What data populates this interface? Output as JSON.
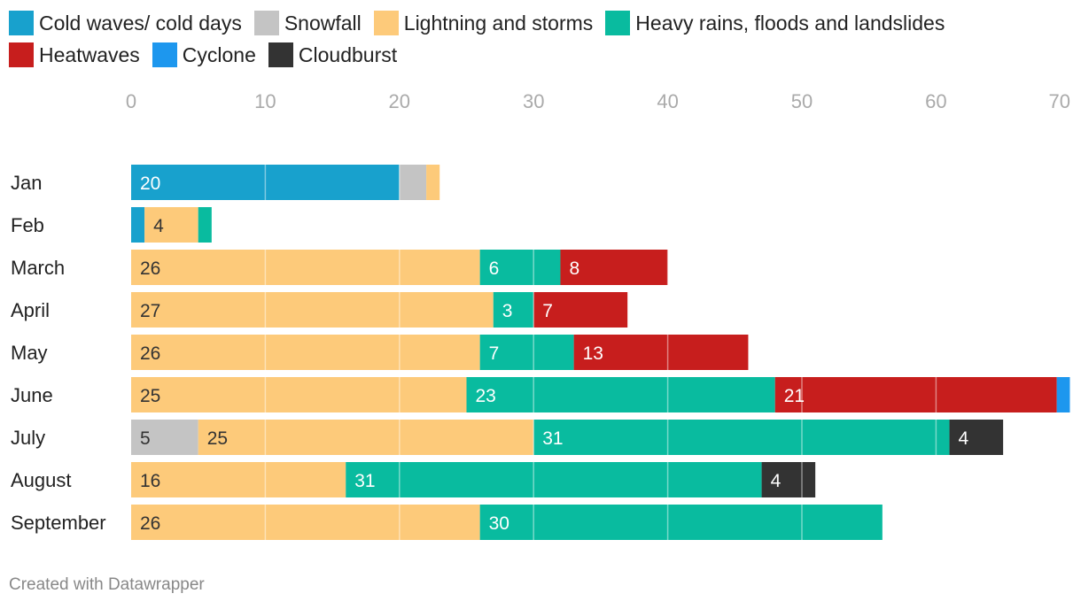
{
  "chart_data": {
    "type": "bar",
    "orientation": "horizontal",
    "stacked": true,
    "xlim": [
      0,
      70
    ],
    "xticks": [
      "0",
      "10",
      "20",
      "30",
      "40",
      "50",
      "60",
      "70"
    ],
    "grid": true,
    "legend_position": "top-left",
    "categories": [
      "Jan",
      "Feb",
      "March",
      "April",
      "May",
      "June",
      "July",
      "August",
      "September"
    ],
    "series": [
      {
        "name": "Cold waves/ cold days",
        "color": "#18a1cd",
        "label_color": "#ffffff",
        "values": [
          20,
          1,
          0,
          0,
          0,
          0,
          0,
          0,
          0
        ]
      },
      {
        "name": "Snowfall",
        "color": "#c4c4c4",
        "label_color": "#333333",
        "values": [
          2,
          0,
          0,
          0,
          0,
          0,
          5,
          0,
          0
        ]
      },
      {
        "name": "Lightning and storms",
        "color": "#fdca7a",
        "label_color": "#333333",
        "values": [
          1,
          4,
          26,
          27,
          26,
          25,
          25,
          16,
          26
        ]
      },
      {
        "name": "Heavy rains, floods and landslides",
        "color": "#09bb9f",
        "label_color": "#ffffff",
        "values": [
          0,
          1,
          6,
          3,
          7,
          23,
          31,
          31,
          30
        ]
      },
      {
        "name": "Heatwaves",
        "color": "#c71e1d",
        "label_color": "#ffffff",
        "values": [
          0,
          0,
          8,
          7,
          13,
          21,
          0,
          0,
          0
        ]
      },
      {
        "name": "Cyclone",
        "color": "#1d97ee",
        "label_color": "#ffffff",
        "values": [
          0,
          0,
          0,
          0,
          0,
          1,
          0,
          0,
          0
        ]
      },
      {
        "name": "Cloudburst",
        "color": "#333333",
        "label_color": "#ffffff",
        "values": [
          0,
          0,
          0,
          0,
          0,
          0,
          4,
          4,
          0
        ]
      }
    ]
  },
  "footer": {
    "credit": "Created with Datawrapper"
  }
}
